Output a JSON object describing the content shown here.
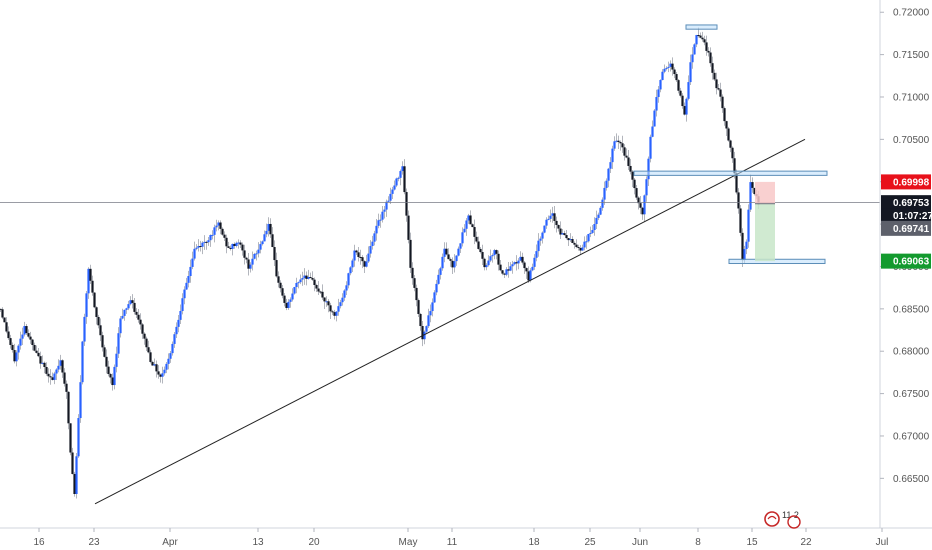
{
  "chart_data": {
    "type": "candlestick",
    "ylim": [
      0.6615,
      0.7205
    ],
    "x_tick_labels": [
      "16",
      "23",
      "Apr",
      "13",
      "20",
      "May",
      "11",
      "18",
      "25",
      "Jun",
      "8",
      "15",
      "22",
      "Jul"
    ],
    "y_tick_labels": [
      "0.72000",
      "0.71500",
      "0.71000",
      "0.70500",
      "0.70000",
      "0.69500",
      "0.69000",
      "0.68500",
      "0.68000",
      "0.67500",
      "0.67000",
      "0.66500"
    ],
    "y_tick_values": [
      0.72,
      0.715,
      0.71,
      0.705,
      0.7,
      0.695,
      0.69,
      0.685,
      0.68,
      0.675,
      0.67,
      0.665
    ],
    "close_path": [
      [
        0,
        0.685
      ],
      [
        14,
        0.679
      ],
      [
        24,
        0.683
      ],
      [
        34,
        0.68
      ],
      [
        44,
        0.678
      ],
      [
        52,
        0.6765
      ],
      [
        60,
        0.679
      ],
      [
        66,
        0.675
      ],
      [
        70,
        0.668
      ],
      [
        74,
        0.663
      ],
      [
        78,
        0.672
      ],
      [
        82,
        0.681
      ],
      [
        88,
        0.69
      ],
      [
        94,
        0.685
      ],
      [
        100,
        0.682
      ],
      [
        106,
        0.678
      ],
      [
        112,
        0.676
      ],
      [
        120,
        0.684
      ],
      [
        130,
        0.686
      ],
      [
        140,
        0.683
      ],
      [
        150,
        0.679
      ],
      [
        160,
        0.677
      ],
      [
        168,
        0.679
      ],
      [
        176,
        0.683
      ],
      [
        184,
        0.687
      ],
      [
        194,
        0.692
      ],
      [
        206,
        0.693
      ],
      [
        218,
        0.695
      ],
      [
        228,
        0.692
      ],
      [
        238,
        0.693
      ],
      [
        248,
        0.69
      ],
      [
        258,
        0.692
      ],
      [
        268,
        0.695
      ],
      [
        276,
        0.689
      ],
      [
        286,
        0.685
      ],
      [
        296,
        0.688
      ],
      [
        304,
        0.689
      ],
      [
        314,
        0.688
      ],
      [
        324,
        0.686
      ],
      [
        334,
        0.684
      ],
      [
        344,
        0.687
      ],
      [
        354,
        0.692
      ],
      [
        364,
        0.69
      ],
      [
        374,
        0.694
      ],
      [
        384,
        0.697
      ],
      [
        394,
        0.6995
      ],
      [
        402,
        0.702
      ],
      [
        406,
        0.696
      ],
      [
        410,
        0.69
      ],
      [
        416,
        0.686
      ],
      [
        422,
        0.6815
      ],
      [
        428,
        0.684
      ],
      [
        436,
        0.688
      ],
      [
        444,
        0.692
      ],
      [
        452,
        0.69
      ],
      [
        460,
        0.693
      ],
      [
        468,
        0.696
      ],
      [
        476,
        0.693
      ],
      [
        484,
        0.69
      ],
      [
        494,
        0.692
      ],
      [
        502,
        0.689
      ],
      [
        512,
        0.69
      ],
      [
        520,
        0.691
      ],
      [
        528,
        0.6885
      ],
      [
        536,
        0.692
      ],
      [
        544,
        0.695
      ],
      [
        552,
        0.696
      ],
      [
        560,
        0.694
      ],
      [
        570,
        0.693
      ],
      [
        580,
        0.692
      ],
      [
        590,
        0.694
      ],
      [
        598,
        0.696
      ],
      [
        606,
        0.7
      ],
      [
        614,
        0.705
      ],
      [
        622,
        0.704
      ],
      [
        628,
        0.702
      ],
      [
        634,
        0.699
      ],
      [
        642,
        0.696
      ],
      [
        650,
        0.705
      ],
      [
        656,
        0.71
      ],
      [
        662,
        0.713
      ],
      [
        670,
        0.714
      ],
      [
        678,
        0.711
      ],
      [
        684,
        0.708
      ],
      [
        690,
        0.714
      ],
      [
        696,
        0.7175
      ],
      [
        702,
        0.717
      ],
      [
        708,
        0.715
      ],
      [
        714,
        0.712
      ],
      [
        720,
        0.71
      ],
      [
        726,
        0.706
      ],
      [
        732,
        0.703
      ],
      [
        738,
        0.697
      ],
      [
        742,
        0.691
      ],
      [
        746,
        0.693
      ],
      [
        750,
        0.7
      ],
      [
        754,
        0.6985
      ],
      [
        758,
        0.6975
      ]
    ],
    "trendline": {
      "from": [
        95,
        0.662
      ],
      "to": [
        805,
        0.705
      ]
    },
    "resistance_zones": [
      {
        "x_from": 686,
        "x_to": 717,
        "y_from": 0.718,
        "y_to": 0.7185
      },
      {
        "x_from": 634,
        "x_to": 827,
        "y_from": 0.70075,
        "y_to": 0.70125
      },
      {
        "x_from": 729,
        "x_to": 825,
        "y_from": 0.69035,
        "y_to": 0.69085
      }
    ],
    "position": {
      "x_from": 755,
      "x_to": 775,
      "entry": 0.69741,
      "stop": 0.69998,
      "target": 0.69063
    },
    "current_price": 0.69753,
    "price_tags": [
      {
        "label": "0.69998",
        "value": 0.69998,
        "bg": "#e8111b",
        "fg": "#ffffff"
      },
      {
        "label": "0.69753",
        "value": 0.69753,
        "bg": "#131722",
        "fg": "#ffffff"
      },
      {
        "label": "01:07:27",
        "value": 0.696,
        "bg": "#131722",
        "fg": "#ffffff"
      },
      {
        "label": "0.69741",
        "value": 0.6945,
        "bg": "#5d606b",
        "fg": "#ffffff"
      },
      {
        "label": "0.69063",
        "value": 0.69063,
        "bg": "#139a2e",
        "fg": "#ffffff"
      }
    ],
    "grid": false,
    "colors": {
      "up": "#2962ff",
      "down": "#131722",
      "trend": "#222222",
      "zone_fill": "#bbdefb",
      "zone_stroke": "#5b8db8",
      "stop_fill": "#f8c8c8",
      "target_fill": "#c8e6c9"
    }
  },
  "logo_text": "11 2"
}
